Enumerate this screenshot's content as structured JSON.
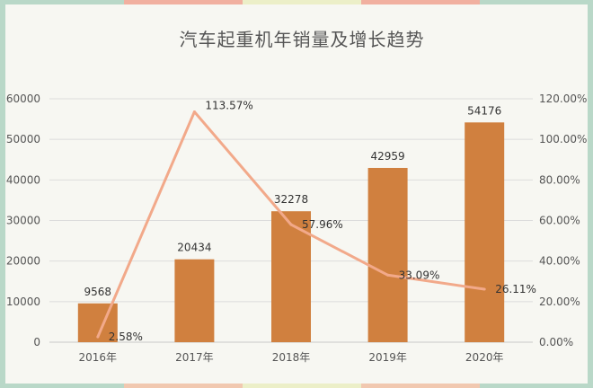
{
  "chart_data": {
    "type": "bar",
    "title": "汽车起重机年销量及增长趋势",
    "categories": [
      "2016年",
      "2017年",
      "2018年",
      "2019年",
      "2020年"
    ],
    "series": [
      {
        "type": "bar",
        "axis": "left",
        "values": [
          9568,
          20434,
          32278,
          42959,
          54176
        ],
        "color": "#d0803f"
      },
      {
        "type": "line",
        "axis": "right",
        "values": [
          2.58,
          113.57,
          57.96,
          33.09,
          26.11
        ],
        "color": "#f2a98a"
      }
    ],
    "bar_labels": [
      "9568",
      "20434",
      "32278",
      "42959",
      "54176"
    ],
    "line_labels": [
      "2.58%",
      "113.57%",
      "57.96%",
      "33.09%",
      "26.11%"
    ],
    "y_left": {
      "ylim": [
        0,
        60000
      ],
      "ticks": [
        "0",
        "10000",
        "20000",
        "30000",
        "40000",
        "50000",
        "60000"
      ]
    },
    "y_right": {
      "ylim": [
        0,
        120
      ],
      "ticks": [
        "0.00%",
        "20.00%",
        "40.00%",
        "60.00%",
        "80.00%",
        "100.00%",
        "120.00%"
      ]
    },
    "grid": true
  }
}
